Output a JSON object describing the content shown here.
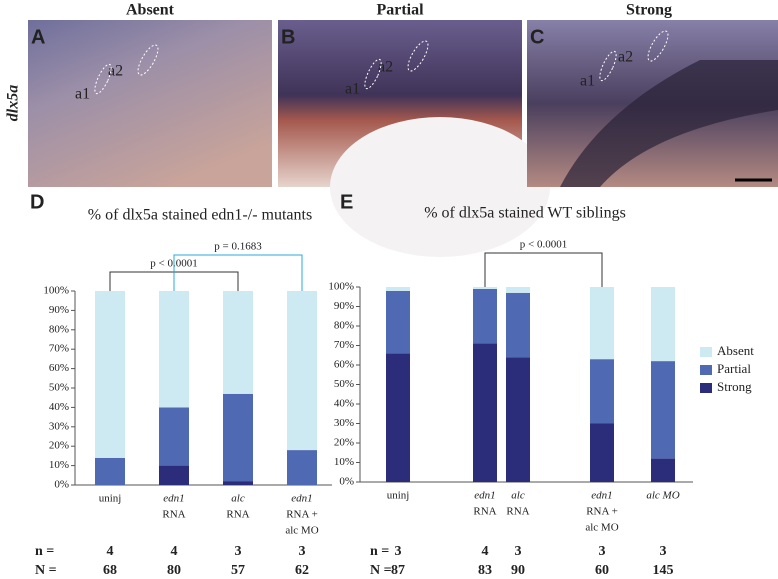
{
  "figure": {
    "row_label": "dlx5a",
    "panels": [
      {
        "letter": "A",
        "title": "Absent",
        "labels": [
          "a1",
          "a2"
        ]
      },
      {
        "letter": "B",
        "title": "Partial",
        "labels": [
          "a1",
          "a2"
        ]
      },
      {
        "letter": "C",
        "title": "Strong",
        "labels": [
          "a1",
          "a2"
        ]
      }
    ]
  },
  "chart_data": [
    {
      "type": "stacked-bar",
      "letter": "D",
      "title": "% of dlx5a stained edn1-/- mutants",
      "categories": [
        [
          "uninj"
        ],
        [
          "edn1",
          "RNA"
        ],
        [
          "alc",
          "RNA"
        ],
        [
          "edn1",
          "RNA  +",
          "alc MO"
        ]
      ],
      "series": [
        {
          "name": "Absent",
          "color": "#cde9f2",
          "values": [
            86,
            60,
            53,
            82
          ]
        },
        {
          "name": "Partial",
          "color": "#5069b3",
          "values": [
            14,
            30,
            45,
            18
          ]
        },
        {
          "name": "Strong",
          "color": "#2b2d7b",
          "values": [
            0,
            10,
            2,
            0
          ]
        }
      ],
      "ylim": [
        0,
        100
      ],
      "yticks": [
        {
          "value": 0,
          "label": "0%"
        },
        {
          "value": 10,
          "label": "10%"
        },
        {
          "value": 20,
          "label": "20%"
        },
        {
          "value": 30,
          "label": "30%"
        },
        {
          "value": 40,
          "label": "40%"
        },
        {
          "value": 50,
          "label": "50%"
        },
        {
          "value": 60,
          "label": "60%"
        },
        {
          "value": 70,
          "label": "70%"
        },
        {
          "value": 80,
          "label": "80%"
        },
        {
          "value": 90,
          "label": "90%"
        },
        {
          "value": 100,
          "label": "100%"
        }
      ],
      "annotations": [
        {
          "text": "p < 0.0001",
          "color": "#333333"
        },
        {
          "text": "p = 0.1683",
          "color": "#2aa8d8"
        }
      ],
      "n_label": "n =",
      "n": [
        4,
        4,
        3,
        3
      ],
      "N_label": "N =",
      "N": [
        68,
        80,
        57,
        62
      ]
    },
    {
      "type": "stacked-bar",
      "letter": "E",
      "title": "% of dlx5a stained WT siblings",
      "categories": [
        [
          "uninj"
        ],
        [
          "edn1",
          "RNA"
        ],
        [
          "alc",
          "RNA"
        ],
        [
          "edn1",
          "RNA  +",
          "alc MO"
        ],
        [
          "alc MO"
        ]
      ],
      "series": [
        {
          "name": "Absent",
          "color": "#cde9f2",
          "values": [
            2,
            1,
            3,
            37,
            38
          ]
        },
        {
          "name": "Partial",
          "color": "#5069b3",
          "values": [
            32,
            28,
            33,
            33,
            50
          ]
        },
        {
          "name": "Strong",
          "color": "#2b2d7b",
          "values": [
            66,
            71,
            64,
            30,
            12
          ]
        }
      ],
      "ylim": [
        0,
        100
      ],
      "yticks": [
        {
          "value": 0,
          "label": "0%"
        },
        {
          "value": 10,
          "label": "10%"
        },
        {
          "value": 20,
          "label": "20%"
        },
        {
          "value": 30,
          "label": "30%"
        },
        {
          "value": 40,
          "label": "40%"
        },
        {
          "value": 50,
          "label": "50%"
        },
        {
          "value": 60,
          "label": "60%"
        },
        {
          "value": 70,
          "label": "70%"
        },
        {
          "value": 80,
          "label": "80%"
        },
        {
          "value": 90,
          "label": "90%"
        },
        {
          "value": 100,
          "label": "100%"
        }
      ],
      "annotations": [
        {
          "text": "p < 0.0001",
          "color": "#333333"
        }
      ],
      "legend": "right",
      "n_label": "n =",
      "n": [
        3,
        4,
        3,
        3,
        3
      ],
      "N_label": "N =",
      "N": [
        87,
        83,
        90,
        60,
        145
      ]
    }
  ]
}
